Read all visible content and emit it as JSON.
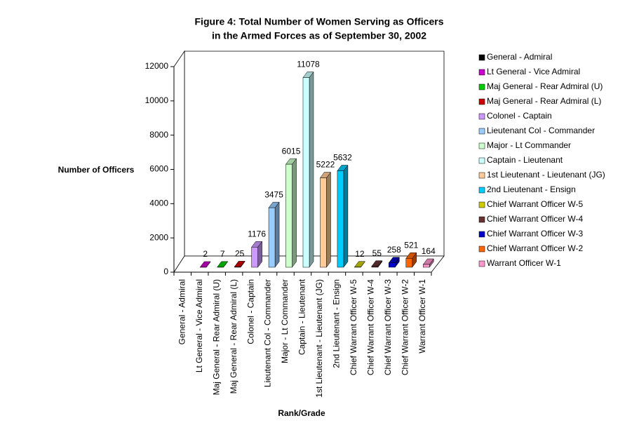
{
  "chart_data": {
    "type": "bar3d",
    "title": [
      "Figure 4: Total Number of Women Serving as Officers",
      "in the Armed Forces as of September 30, 2002"
    ],
    "y_label": "Number of Officers",
    "x_label": "Rank/Grade",
    "categories": [
      "General - Admiral",
      "Lt General - Vice Admiral",
      "Maj General - Rear Admiral (U)",
      "Maj General - Rear Admiral (L)",
      "Colonel - Captain",
      "Lieutenant Col - Commander",
      "Major - Lt Commander",
      "Captain - Lieutenant",
      "1st Lieutenant - Lieutenant (JG)",
      "2nd Lieutenant - Ensign",
      "Chief Warrant Officer W-5",
      "Chief Warrant Officer W-4",
      "Chief Warrant Officer W-3",
      "Chief Warrant Officer W-2",
      "Warrant Officer W-1"
    ],
    "values": [
      null,
      2,
      7,
      25,
      1176,
      3475,
      6015,
      11078,
      5222,
      5632,
      12,
      55,
      258,
      521,
      164
    ],
    "colors": [
      "#000000",
      "#cc00cc",
      "#00cc00",
      "#cc0000",
      "#cc99ff",
      "#99ccff",
      "#ccffcc",
      "#ccffff",
      "#ffcc99",
      "#00ccff",
      "#cccc00",
      "#663333",
      "#0000cc",
      "#ff6600",
      "#ff99cc"
    ],
    "ylim": [
      0,
      12000
    ],
    "yticks": [
      0,
      2000,
      4000,
      6000,
      8000,
      10000,
      12000
    ],
    "legend": "right"
  }
}
